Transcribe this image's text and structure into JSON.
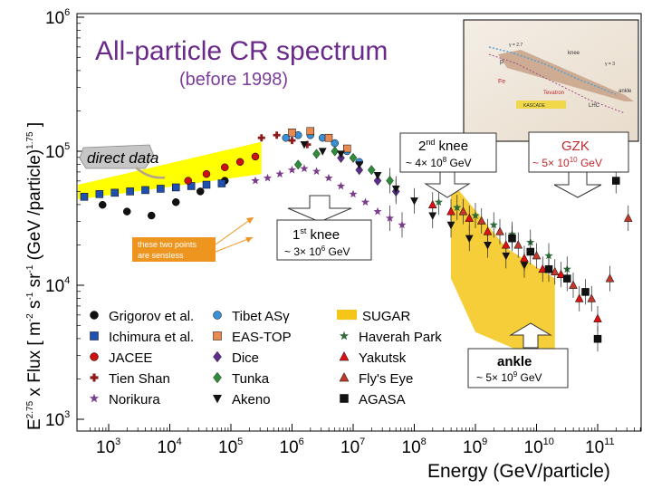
{
  "chart_data": {
    "type": "scatter",
    "title": "All-particle CR spectrum",
    "subtitle": "(before 1998)",
    "xlabel": "Energy (GeV/particle)",
    "ylabel_main": "E",
    "ylabel_exp": "2.75",
    "ylabel_text": " x Flux  [ m",
    "ylabel_units_exp": "-2",
    "ylabel_units": " s",
    "ylabel_units_exp2": "-1",
    "ylabel_units2": " sr",
    "ylabel_units_exp3": "-1",
    "ylabel_units3": " (GeV /particle)",
    "ylabel_units_exp4": "1.75",
    "ylabel_close": " ]",
    "x_scale": "log",
    "y_scale": "log",
    "xlim_log10": [
      2.5,
      11.6
    ],
    "ylim_log10": [
      3,
      6
    ],
    "x_ticks": [
      {
        "base": "10",
        "exp": "3",
        "log": 3
      },
      {
        "base": "10",
        "exp": "4",
        "log": 4
      },
      {
        "base": "10",
        "exp": "5",
        "log": 5
      },
      {
        "base": "10",
        "exp": "6",
        "log": 6
      },
      {
        "base": "10",
        "exp": "7",
        "log": 7
      },
      {
        "base": "10",
        "exp": "8",
        "log": 8
      },
      {
        "base": "10",
        "exp": "9",
        "log": 9
      },
      {
        "base": "10",
        "exp": "10",
        "log": 10
      },
      {
        "base": "10",
        "exp": "11",
        "log": 11
      }
    ],
    "y_ticks": [
      {
        "base": "10",
        "exp": "3",
        "log": 3
      },
      {
        "base": "10",
        "exp": "4",
        "log": 4
      },
      {
        "base": "10",
        "exp": "5",
        "log": 5
      },
      {
        "base": "10",
        "exp": "6",
        "log": 6
      }
    ],
    "bands": [
      {
        "name": "direct data band",
        "color": "#ffff00",
        "lower": [
          [
            2.5,
            4.64
          ],
          [
            5.5,
            4.83
          ]
        ],
        "upper": [
          [
            2.5,
            4.75
          ],
          [
            5.5,
            5.07
          ]
        ]
      },
      {
        "name": "SUGAR",
        "color": "#f5c518",
        "lower": [
          [
            8.6,
            4.05
          ],
          [
            9.0,
            3.65
          ],
          [
            10.3,
            3.4
          ]
        ],
        "upper": [
          [
            8.6,
            4.78
          ],
          [
            9.5,
            4.28
          ],
          [
            10.3,
            4.05
          ]
        ]
      }
    ],
    "series": [
      {
        "name": "Grigorov et al.",
        "marker": "circle",
        "color": "#111111",
        "x": [
          2.9,
          3.3,
          3.7,
          4.1,
          4.5,
          4.9
        ],
        "y": [
          4.6,
          4.55,
          4.52,
          4.62,
          4.7,
          4.78
        ]
      },
      {
        "name": "Ichimura et al.",
        "marker": "square",
        "color": "#1f4fb0",
        "x": [
          2.6,
          2.85,
          3.1,
          3.35,
          3.6,
          3.85,
          4.1,
          4.35,
          4.6,
          4.85
        ],
        "y": [
          4.66,
          4.68,
          4.69,
          4.7,
          4.71,
          4.72,
          4.73,
          4.74,
          4.75,
          4.76
        ]
      },
      {
        "name": "JACEE",
        "marker": "circle",
        "color": "#cc1111",
        "x": [
          4.3,
          4.6,
          4.9,
          5.15,
          5.4
        ],
        "y": [
          4.78,
          4.83,
          4.88,
          4.92,
          4.96
        ]
      },
      {
        "name": "Tien Shan",
        "marker": "plus",
        "color": "#8b1a1a",
        "x": [
          5.5,
          5.75,
          6.0,
          6.25
        ],
        "y": [
          5.1,
          5.12,
          5.08,
          5.05
        ]
      },
      {
        "name": "Norikura",
        "marker": "star",
        "color": "#7a3d8a",
        "x": [
          5.4,
          5.6,
          5.8,
          6.0,
          6.2,
          6.4,
          6.6,
          6.8,
          7.0,
          7.2,
          7.4,
          7.6,
          7.8
        ],
        "y": [
          4.78,
          4.8,
          4.83,
          4.86,
          4.87,
          4.85,
          4.8,
          4.74,
          4.68,
          4.62,
          4.55,
          4.5,
          4.45
        ]
      },
      {
        "name": "Tibet ASγ",
        "marker": "circle",
        "color": "#3a8fd6",
        "x": [
          5.9,
          6.1,
          6.3,
          6.5,
          6.7,
          6.9,
          7.1
        ],
        "y": [
          5.1,
          5.12,
          5.12,
          5.1,
          5.06,
          5.0,
          4.92
        ]
      },
      {
        "name": "EAS-TOP",
        "marker": "square",
        "color": "#e88a50",
        "x": [
          6.0,
          6.3,
          6.6,
          6.9
        ],
        "y": [
          5.14,
          5.15,
          5.1,
          5.02
        ]
      },
      {
        "name": "Dice",
        "marker": "diamond",
        "color": "#5b2d8c",
        "x": [
          6.8,
          7.1,
          7.4,
          7.7
        ],
        "y": [
          4.95,
          4.86,
          4.78,
          4.7
        ]
      },
      {
        "name": "Tunka",
        "marker": "diamond",
        "color": "#2e8b3a",
        "x": [
          6.1,
          6.4,
          6.7,
          7.0,
          7.3,
          7.6
        ],
        "y": [
          4.9,
          4.98,
          5.0,
          4.95,
          4.86,
          4.78
        ]
      },
      {
        "name": "Akeno",
        "marker": "triangle-down",
        "color": "#111111",
        "x": [
          6.2,
          6.5,
          6.8,
          7.1,
          7.4,
          7.7,
          8.0,
          8.3,
          8.6,
          8.9,
          9.2,
          9.5,
          9.8
        ],
        "y": [
          5.05,
          5.0,
          4.98,
          4.9,
          4.82,
          4.72,
          4.63,
          4.52,
          4.45,
          4.35,
          4.3,
          4.22,
          4.15
        ]
      },
      {
        "name": "Haverah Park",
        "marker": "star",
        "color": "#2f6b3a",
        "x": [
          8.4,
          8.7,
          9.0,
          9.3,
          9.6,
          9.9,
          10.2,
          10.5
        ],
        "y": [
          4.62,
          4.58,
          4.52,
          4.45,
          4.38,
          4.32,
          4.22,
          4.12
        ]
      },
      {
        "name": "Yakutsk",
        "marker": "triangle",
        "color": "#dd1111",
        "x": [
          8.3,
          8.6,
          8.9,
          9.2,
          9.5,
          9.8,
          10.1,
          10.4,
          10.7,
          11.0
        ],
        "y": [
          4.6,
          4.55,
          4.5,
          4.4,
          4.3,
          4.2,
          4.12,
          4.08,
          3.9,
          3.75
        ]
      },
      {
        "name": "Fly's Eye",
        "marker": "triangle",
        "color": "#c0392b",
        "x": [
          8.8,
          9.1,
          9.4,
          9.7,
          10.0,
          10.3,
          10.6,
          10.9,
          11.2,
          11.5
        ],
        "y": [
          4.55,
          4.48,
          4.4,
          4.3,
          4.22,
          4.1,
          4.0,
          3.9,
          4.05,
          4.5
        ]
      },
      {
        "name": "AGASA",
        "marker": "square",
        "color": "#111111",
        "x": [
          9.6,
          9.9,
          10.2,
          10.5,
          10.8,
          11.0,
          11.3
        ],
        "y": [
          4.35,
          4.25,
          4.12,
          4.05,
          3.95,
          3.6,
          4.78
        ]
      }
    ],
    "legend": {
      "position": "bottom-left",
      "columns": 3
    }
  },
  "annotations": {
    "direct_data": "direct data",
    "sensless_line1": "these two points",
    "sensless_line2": "are sensless",
    "knee1_title": "1",
    "knee1_sup": "st",
    "knee1_word": " knee",
    "knee1_value": "~ 3× 10",
    "knee1_exp": "6",
    "knee1_unit": " GeV",
    "knee2_title": "2",
    "knee2_sup": "nd",
    "knee2_word": " knee",
    "knee2_value": "~ 4× 10",
    "knee2_exp": "8",
    "knee2_unit": " GeV",
    "gzk_title": "GZK",
    "gzk_value": "~ 5× 10",
    "gzk_exp": "10",
    "gzk_unit": " GeV",
    "ankle_title": "ankle",
    "ankle_value": "~ 5× 10",
    "ankle_exp": "9",
    "ankle_unit": " GeV"
  },
  "inset": {
    "labels": [
      "knee",
      "ankle",
      "Tevatron",
      "LHC",
      "KASCADE",
      "p",
      "Fe",
      "γ = 2.7",
      "γ = 3"
    ]
  },
  "colors": {
    "title": "#6a2a8a",
    "subtitle": "#7a3d9a",
    "annotation_red": "#c0282e",
    "arrow_fill": "#ffffff",
    "arrow_stroke": "#333333",
    "band_yellow": "#ffff00",
    "band_sugar": "#f5c518"
  }
}
